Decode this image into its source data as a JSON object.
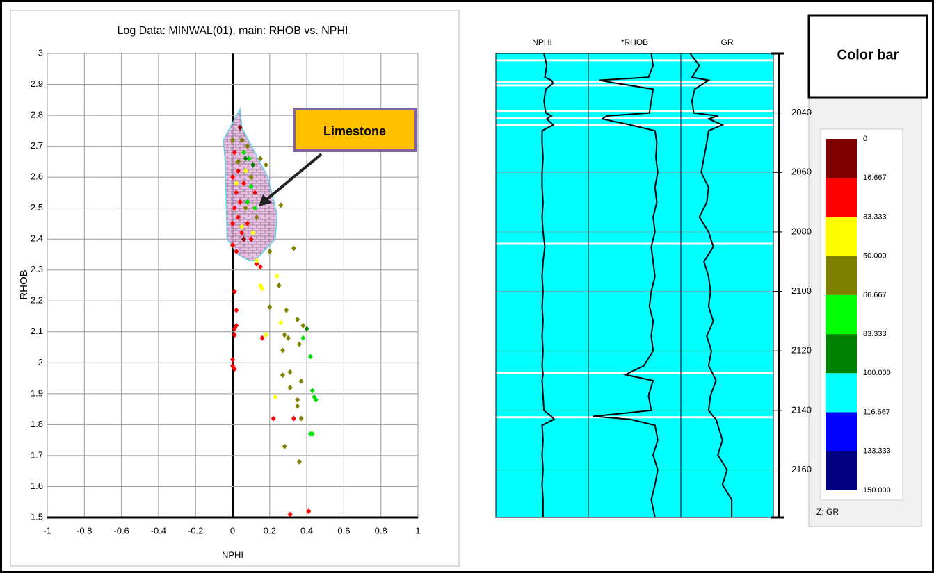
{
  "chart_data": [
    {
      "type": "scatter",
      "title": "Log Data: MINWAL(01), main: RHOB vs. NPHI",
      "xlabel": "NPHI",
      "ylabel": "RHOB",
      "xlim": [
        -1,
        1
      ],
      "xticks": [
        -1,
        -0.8,
        -0.6,
        -0.4,
        -0.2,
        0,
        0.2,
        0.4,
        0.6,
        0.8,
        1
      ],
      "ylim": [
        1.5,
        3
      ],
      "yticks": [
        1.5,
        1.6,
        1.7,
        1.8,
        1.9,
        2,
        2.1,
        2.2,
        2.3,
        2.4,
        2.5,
        2.6,
        2.7,
        2.8,
        2.9,
        3
      ],
      "grid": true,
      "region": {
        "x": [
          -0.05,
          0.04,
          0.05,
          0.19,
          0.24,
          0.23,
          0.12,
          0.09,
          0.03,
          -0.03,
          -0.04
        ],
        "y": [
          2.72,
          2.82,
          2.76,
          2.6,
          2.48,
          2.4,
          2.33,
          2.33,
          2.35,
          2.4,
          2.65
        ],
        "fill": "#e8b4e0",
        "stroke": "#5fd3e8"
      },
      "annotation": "Limestone",
      "x": [
        0.01,
        0.02,
        0.02,
        0.01,
        0.01,
        0,
        0,
        0.01,
        0.16,
        0.13,
        0.15,
        0.22,
        0.33,
        0.41,
        0.31,
        0.15,
        0.16,
        0.24,
        0.26,
        0.18,
        0.13,
        0.23,
        0.33,
        0.2,
        0.2,
        0.25,
        0.29,
        0.3,
        0.28,
        0.35,
        0.38,
        0.36,
        0.31,
        0.27,
        0.31,
        0.37,
        0.35,
        0.37,
        0.35,
        0.36,
        0.28,
        0.27,
        0.42,
        0.43,
        0.45,
        0.44,
        0.42,
        0.43,
        0.38,
        0.26,
        0.4,
        0,
        0.02,
        0.01,
        0.03,
        0.05,
        0,
        0.02,
        0.06,
        0.08,
        0.01,
        0.04,
        0.1,
        0,
        0.03,
        0.12,
        0.05,
        0.08,
        0.03,
        0.15,
        0.18,
        0.1,
        0.07,
        0.13,
        0,
        0.06,
        0.09,
        0.1,
        0.08,
        0.12,
        0.02,
        0.05,
        0.11,
        0.07,
        0.07,
        0.11,
        0.04,
        0.06
      ],
      "y": [
        2.23,
        2.17,
        2.12,
        2.11,
        2.09,
        2.01,
        1.99,
        1.98,
        2.08,
        2.32,
        2.31,
        1.82,
        1.82,
        1.52,
        1.51,
        2.25,
        2.24,
        2.28,
        2.13,
        2.09,
        2.33,
        1.89,
        2.37,
        2.36,
        2.18,
        2.25,
        2.17,
        2.08,
        2.09,
        2.14,
        2.12,
        2.06,
        1.97,
        1.96,
        1.92,
        1.94,
        1.88,
        1.82,
        1.86,
        1.68,
        1.73,
        2.04,
        2.02,
        1.91,
        1.88,
        1.89,
        1.77,
        1.77,
        2.08,
        2.51,
        2.11,
        2.6,
        2.55,
        2.5,
        2.47,
        2.42,
        2.38,
        2.36,
        2.58,
        2.45,
        2.68,
        2.52,
        2.4,
        2.45,
        2.62,
        2.55,
        2.72,
        2.7,
        2.65,
        2.66,
        2.64,
        2.6,
        2.5,
        2.47,
        2.72,
        2.68,
        2.66,
        2.57,
        2.52,
        2.5,
        2.58,
        2.44,
        2.42,
        2.62,
        2.66,
        2.64,
        2.76,
        2.4
      ],
      "colors": [
        "#ff0000",
        "#ff0000",
        "#ff0000",
        "#ff0000",
        "#ff0000",
        "#ff0000",
        "#ff0000",
        "#ff0000",
        "#ff0000",
        "#ff0000",
        "#ff0000",
        "#ff0000",
        "#ff0000",
        "#ff0000",
        "#ff0000",
        "#ffff00",
        "#ffff00",
        "#ffff00",
        "#ffff00",
        "#ffff00",
        "#ffff00",
        "#ffff00",
        "#808000",
        "#808000",
        "#808000",
        "#808000",
        "#808000",
        "#808000",
        "#808000",
        "#808000",
        "#808000",
        "#808000",
        "#808000",
        "#808000",
        "#808000",
        "#808000",
        "#808000",
        "#808000",
        "#808000",
        "#808000",
        "#808000",
        "#808000",
        "#00e000",
        "#00e000",
        "#00e000",
        "#00e000",
        "#00e000",
        "#00e000",
        "#00e000",
        "#808000",
        "#008000",
        "#ff0000",
        "#ff0000",
        "#ff0000",
        "#ff0000",
        "#ff0000",
        "#ff0000",
        "#ff0000",
        "#ff0000",
        "#ff0000",
        "#ff0000",
        "#ff0000",
        "#ff0000",
        "#ff0000",
        "#ff0000",
        "#ff0000",
        "#808000",
        "#808000",
        "#808000",
        "#808000",
        "#808000",
        "#808000",
        "#808000",
        "#808000",
        "#808000",
        "#00e000",
        "#00e000",
        "#00e000",
        "#00e000",
        "#00e000",
        "#ffff00",
        "#ffff00",
        "#ffff00",
        "#ffff00",
        "#008000",
        "#008000",
        "#800000",
        "#800000"
      ]
    },
    {
      "type": "log_tracks",
      "background": "#00ffff",
      "line_color": "#000000",
      "ylim": [
        2020,
        2176
      ],
      "yticks": [
        2040,
        2060,
        2080,
        2100,
        2120,
        2140,
        2160
      ],
      "gaps": [
        2022.3,
        2029.5,
        2030.7,
        2039.3,
        2041.6,
        2044,
        2084,
        2127.4,
        2142.3
      ],
      "depth": [
        2020,
        2024,
        2028,
        2029,
        2030,
        2032,
        2036,
        2040,
        2041,
        2042,
        2044,
        2046,
        2050,
        2055,
        2060,
        2065,
        2070,
        2075,
        2080,
        2085,
        2090,
        2095,
        2100,
        2105,
        2110,
        2115,
        2120,
        2125,
        2128,
        2130,
        2135,
        2140,
        2142,
        2143,
        2145,
        2150,
        2155,
        2160,
        2165,
        2170,
        2176
      ],
      "tracks": [
        {
          "name": "NPHI",
          "xlim": [
            0,
            100
          ],
          "values": [
            52,
            55,
            53,
            60,
            62,
            54,
            52,
            54,
            60,
            55,
            62,
            50,
            50,
            51,
            50,
            50,
            51,
            50,
            51,
            53,
            51,
            50,
            51,
            50,
            51,
            50,
            51,
            50,
            51,
            50,
            51,
            52,
            60,
            63,
            50,
            51,
            50,
            51,
            50,
            51,
            51
          ]
        },
        {
          "name": "*RHOB",
          "xlim": [
            0,
            100
          ],
          "values": [
            68,
            70,
            65,
            12,
            30,
            70,
            68,
            66,
            20,
            15,
            45,
            72,
            74,
            73,
            75,
            72,
            74,
            70,
            72,
            68,
            70,
            72,
            68,
            66,
            70,
            68,
            70,
            60,
            40,
            70,
            65,
            68,
            5,
            45,
            72,
            75,
            70,
            75,
            72,
            68,
            72
          ]
        },
        {
          "name": "GR",
          "xlim": [
            0,
            100
          ],
          "values": [
            10,
            20,
            12,
            30,
            25,
            15,
            12,
            14,
            40,
            30,
            45,
            30,
            28,
            25,
            22,
            30,
            28,
            20,
            30,
            35,
            25,
            30,
            32,
            30,
            35,
            28,
            33,
            30,
            35,
            38,
            32,
            30,
            35,
            38,
            40,
            45,
            40,
            50,
            45,
            55,
            55
          ]
        }
      ]
    },
    {
      "type": "colorbar",
      "title": "Color bar",
      "label": "Z: GR",
      "ticks": [
        0,
        16.667,
        33.333,
        {
          "value": 50,
          "label": "50.000"
        },
        66.667,
        83.333,
        {
          "value": 100,
          "label": "100.000"
        },
        116.667,
        133.333,
        {
          "value": 150,
          "label": "150.000"
        }
      ],
      "colors": [
        "#800000",
        "#ff0000",
        "#ffff00",
        "#808000",
        "#00ff00",
        "#008000",
        "#00ffff",
        "#0000ff",
        "#000080"
      ]
    }
  ]
}
